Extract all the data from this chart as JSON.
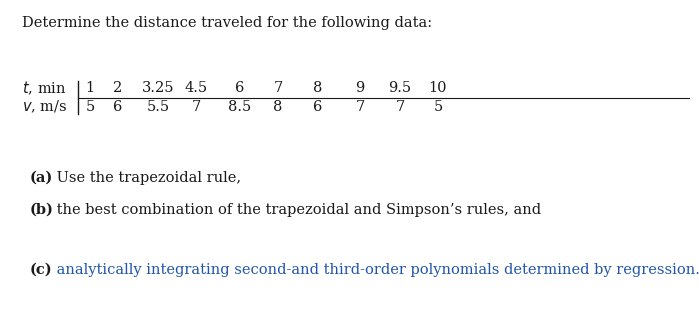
{
  "title": "Determine the distance traveled for the following data:",
  "title_fontsize": 10.5,
  "title_color": "#1a1a1a",
  "background_color": "#ffffff",
  "table": {
    "t_values": [
      "1",
      "2",
      "3.25",
      "4.5",
      "6",
      "7",
      "8",
      "9",
      "9.5",
      "10"
    ],
    "v_values": [
      "5",
      "6",
      "5.5",
      "7",
      "8.5",
      "8",
      "6",
      "7",
      "7",
      "5"
    ]
  },
  "parts": [
    {
      "label": "(a)",
      "text": " Use the trapezoidal rule,",
      "color": "#1a1a1a"
    },
    {
      "label": "(b)",
      "text": " the best combination of the trapezoidal and Simpson’s rules, and",
      "color": "#1a1a1a"
    },
    {
      "label": "(c)",
      "text": " analytically integrating second-and third-order polynomials determined by regression.",
      "color": "#2255aa"
    }
  ],
  "label_fontsize": 10.5,
  "text_fontsize": 10.5,
  "table_fontsize": 10.5,
  "fig_width": 6.99,
  "fig_height": 3.25,
  "dpi": 100
}
